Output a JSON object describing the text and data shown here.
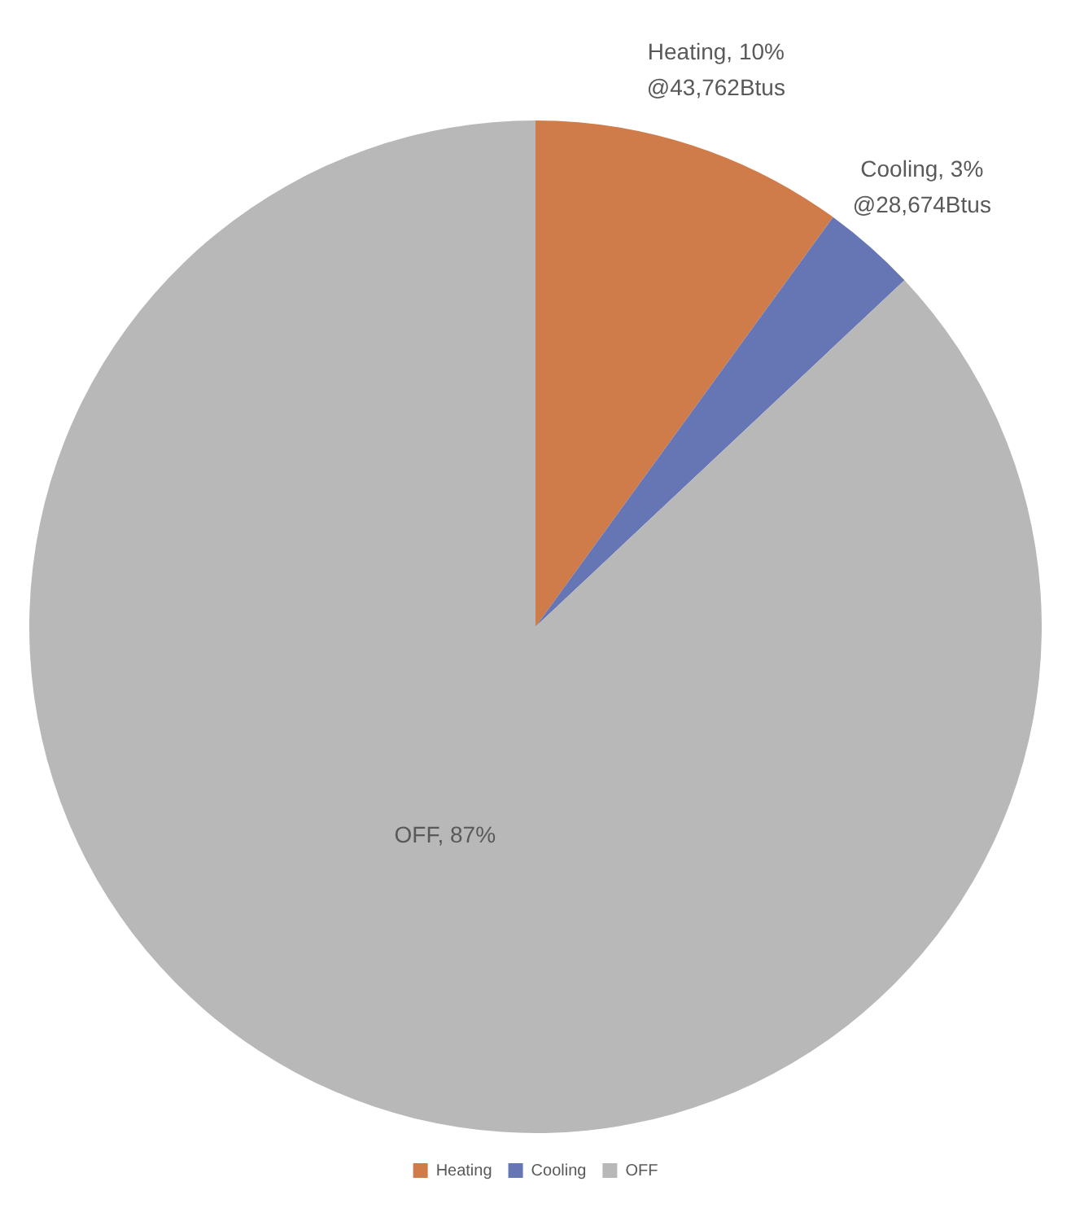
{
  "chart_data": {
    "type": "pie",
    "categories": [
      "Heating",
      "Cooling",
      "OFF"
    ],
    "values": [
      10,
      3,
      87
    ],
    "colors": [
      "#d07b4a",
      "#6676b4",
      "#b8b8b8"
    ],
    "value_labels": [
      "Heating, 10%\n@43,762Btus",
      "Cooling, 3%\n@28,674Btus",
      "OFF, 87%"
    ],
    "legend": "bottom"
  }
}
